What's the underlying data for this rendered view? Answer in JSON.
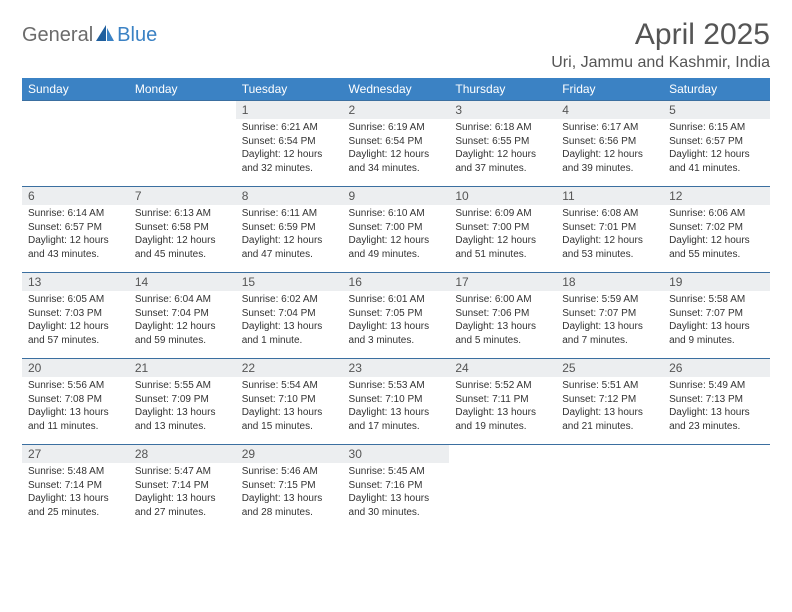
{
  "logo": {
    "part1": "General",
    "part2": "Blue"
  },
  "title": "April 2025",
  "location": "Uri, Jammu and Kashmir, India",
  "colors": {
    "header_bg": "#3b82c4",
    "header_text": "#ffffff",
    "daynum_bg": "#eceef0",
    "border": "#3b6fa0",
    "body_text": "#333333",
    "title_text": "#555555"
  },
  "weekdays": [
    "Sunday",
    "Monday",
    "Tuesday",
    "Wednesday",
    "Thursday",
    "Friday",
    "Saturday"
  ],
  "weeks": [
    [
      {
        "empty": true
      },
      {
        "empty": true
      },
      {
        "n": "1",
        "sr": "Sunrise: 6:21 AM",
        "ss": "Sunset: 6:54 PM",
        "dl": "Daylight: 12 hours and 32 minutes."
      },
      {
        "n": "2",
        "sr": "Sunrise: 6:19 AM",
        "ss": "Sunset: 6:54 PM",
        "dl": "Daylight: 12 hours and 34 minutes."
      },
      {
        "n": "3",
        "sr": "Sunrise: 6:18 AM",
        "ss": "Sunset: 6:55 PM",
        "dl": "Daylight: 12 hours and 37 minutes."
      },
      {
        "n": "4",
        "sr": "Sunrise: 6:17 AM",
        "ss": "Sunset: 6:56 PM",
        "dl": "Daylight: 12 hours and 39 minutes."
      },
      {
        "n": "5",
        "sr": "Sunrise: 6:15 AM",
        "ss": "Sunset: 6:57 PM",
        "dl": "Daylight: 12 hours and 41 minutes."
      }
    ],
    [
      {
        "n": "6",
        "sr": "Sunrise: 6:14 AM",
        "ss": "Sunset: 6:57 PM",
        "dl": "Daylight: 12 hours and 43 minutes."
      },
      {
        "n": "7",
        "sr": "Sunrise: 6:13 AM",
        "ss": "Sunset: 6:58 PM",
        "dl": "Daylight: 12 hours and 45 minutes."
      },
      {
        "n": "8",
        "sr": "Sunrise: 6:11 AM",
        "ss": "Sunset: 6:59 PM",
        "dl": "Daylight: 12 hours and 47 minutes."
      },
      {
        "n": "9",
        "sr": "Sunrise: 6:10 AM",
        "ss": "Sunset: 7:00 PM",
        "dl": "Daylight: 12 hours and 49 minutes."
      },
      {
        "n": "10",
        "sr": "Sunrise: 6:09 AM",
        "ss": "Sunset: 7:00 PM",
        "dl": "Daylight: 12 hours and 51 minutes."
      },
      {
        "n": "11",
        "sr": "Sunrise: 6:08 AM",
        "ss": "Sunset: 7:01 PM",
        "dl": "Daylight: 12 hours and 53 minutes."
      },
      {
        "n": "12",
        "sr": "Sunrise: 6:06 AM",
        "ss": "Sunset: 7:02 PM",
        "dl": "Daylight: 12 hours and 55 minutes."
      }
    ],
    [
      {
        "n": "13",
        "sr": "Sunrise: 6:05 AM",
        "ss": "Sunset: 7:03 PM",
        "dl": "Daylight: 12 hours and 57 minutes."
      },
      {
        "n": "14",
        "sr": "Sunrise: 6:04 AM",
        "ss": "Sunset: 7:04 PM",
        "dl": "Daylight: 12 hours and 59 minutes."
      },
      {
        "n": "15",
        "sr": "Sunrise: 6:02 AM",
        "ss": "Sunset: 7:04 PM",
        "dl": "Daylight: 13 hours and 1 minute."
      },
      {
        "n": "16",
        "sr": "Sunrise: 6:01 AM",
        "ss": "Sunset: 7:05 PM",
        "dl": "Daylight: 13 hours and 3 minutes."
      },
      {
        "n": "17",
        "sr": "Sunrise: 6:00 AM",
        "ss": "Sunset: 7:06 PM",
        "dl": "Daylight: 13 hours and 5 minutes."
      },
      {
        "n": "18",
        "sr": "Sunrise: 5:59 AM",
        "ss": "Sunset: 7:07 PM",
        "dl": "Daylight: 13 hours and 7 minutes."
      },
      {
        "n": "19",
        "sr": "Sunrise: 5:58 AM",
        "ss": "Sunset: 7:07 PM",
        "dl": "Daylight: 13 hours and 9 minutes."
      }
    ],
    [
      {
        "n": "20",
        "sr": "Sunrise: 5:56 AM",
        "ss": "Sunset: 7:08 PM",
        "dl": "Daylight: 13 hours and 11 minutes."
      },
      {
        "n": "21",
        "sr": "Sunrise: 5:55 AM",
        "ss": "Sunset: 7:09 PM",
        "dl": "Daylight: 13 hours and 13 minutes."
      },
      {
        "n": "22",
        "sr": "Sunrise: 5:54 AM",
        "ss": "Sunset: 7:10 PM",
        "dl": "Daylight: 13 hours and 15 minutes."
      },
      {
        "n": "23",
        "sr": "Sunrise: 5:53 AM",
        "ss": "Sunset: 7:10 PM",
        "dl": "Daylight: 13 hours and 17 minutes."
      },
      {
        "n": "24",
        "sr": "Sunrise: 5:52 AM",
        "ss": "Sunset: 7:11 PM",
        "dl": "Daylight: 13 hours and 19 minutes."
      },
      {
        "n": "25",
        "sr": "Sunrise: 5:51 AM",
        "ss": "Sunset: 7:12 PM",
        "dl": "Daylight: 13 hours and 21 minutes."
      },
      {
        "n": "26",
        "sr": "Sunrise: 5:49 AM",
        "ss": "Sunset: 7:13 PM",
        "dl": "Daylight: 13 hours and 23 minutes."
      }
    ],
    [
      {
        "n": "27",
        "sr": "Sunrise: 5:48 AM",
        "ss": "Sunset: 7:14 PM",
        "dl": "Daylight: 13 hours and 25 minutes."
      },
      {
        "n": "28",
        "sr": "Sunrise: 5:47 AM",
        "ss": "Sunset: 7:14 PM",
        "dl": "Daylight: 13 hours and 27 minutes."
      },
      {
        "n": "29",
        "sr": "Sunrise: 5:46 AM",
        "ss": "Sunset: 7:15 PM",
        "dl": "Daylight: 13 hours and 28 minutes."
      },
      {
        "n": "30",
        "sr": "Sunrise: 5:45 AM",
        "ss": "Sunset: 7:16 PM",
        "dl": "Daylight: 13 hours and 30 minutes."
      },
      {
        "empty": true
      },
      {
        "empty": true
      },
      {
        "empty": true
      }
    ]
  ]
}
